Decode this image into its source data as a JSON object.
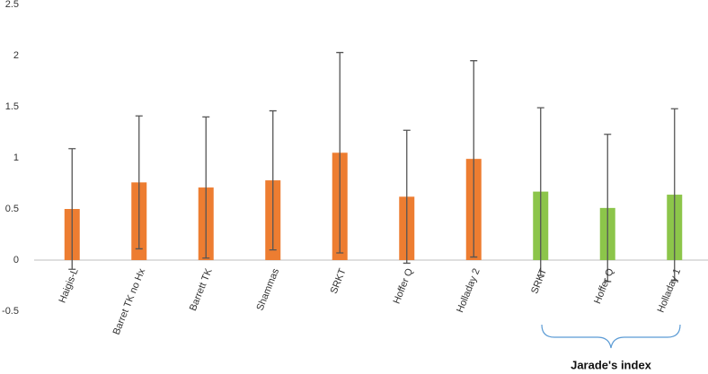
{
  "chart_data": {
    "type": "bar",
    "categories": [
      "Haigis-L",
      "Barret TK no Hx",
      "Barrett TK",
      "Shammas",
      "SRKT",
      "Hoffer Q",
      "Holladay 2",
      "SRKT",
      "Hoffer Q",
      "Holladay 1"
    ],
    "values": [
      0.5,
      0.76,
      0.71,
      0.78,
      1.05,
      0.62,
      0.99,
      0.67,
      0.51,
      0.64
    ],
    "errors": [
      0.59,
      0.65,
      0.69,
      0.68,
      0.98,
      0.65,
      0.96,
      0.82,
      0.72,
      0.84
    ],
    "colors": [
      "#ed7d31",
      "#ed7d31",
      "#ed7d31",
      "#ed7d31",
      "#ed7d31",
      "#ed7d31",
      "#ed7d31",
      "#8cc54a",
      "#8cc54a",
      "#8cc54a"
    ],
    "error_color": "#555555",
    "ylim": [
      -0.5,
      2.5
    ],
    "yticks": [
      -0.5,
      0,
      0.5,
      1,
      1.5,
      2,
      2.5
    ],
    "annotation": "Jarade's index",
    "grid": false
  }
}
